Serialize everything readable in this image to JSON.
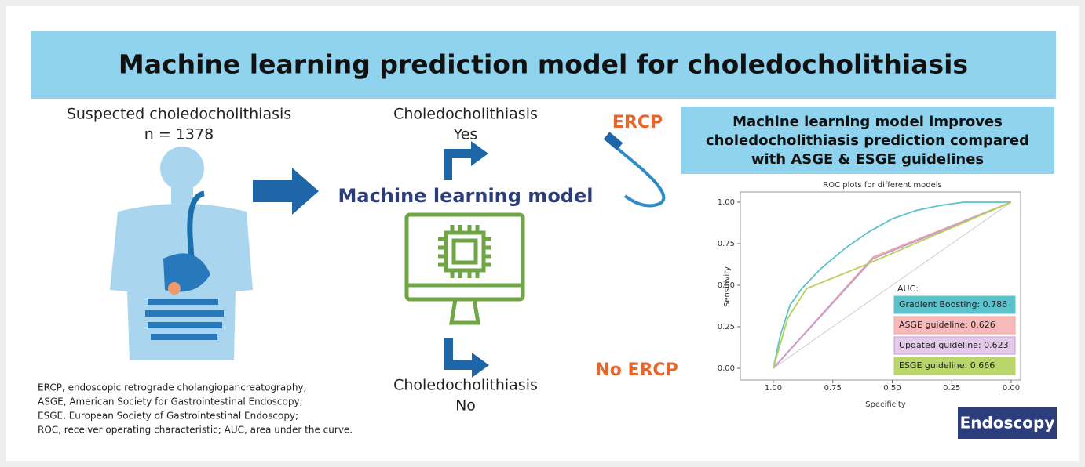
{
  "title": "Machine learning prediction model for choledocholithiasis",
  "left": {
    "heading": "Suspected choledocholithiasis",
    "count": "n = 1378",
    "footnotes": [
      "ERCP, endoscopic retrograde cholangiopancreatography;",
      "ASGE, American Society for Gastrointestinal Endoscopy;",
      "ESGE, European Society of Gastrointestinal Endoscopy;",
      "ROC, receiver operating characteristic; AUC, area under the curve."
    ]
  },
  "middle": {
    "yes_label": "Choledocholithiasis",
    "yes": "Yes",
    "model": "Machine learning model",
    "no_label": "Choledocholithiasis",
    "no": "No"
  },
  "ercp": "ERCP",
  "no_ercp": "No ERCP",
  "right": {
    "heading": [
      "Machine learning model improves",
      "choledocholithiasis prediction compared",
      "with  ASGE & ESGE guidelines"
    ]
  },
  "brand": "Endoscopy",
  "chart_data": {
    "type": "line",
    "title": "ROC plots for different models",
    "x_label": "Specificity",
    "y_label": "Sensitivity",
    "xlim": [
      1,
      0
    ],
    "ylim": [
      0,
      1
    ],
    "xticks": [
      {
        "value": 1,
        "label": "1.00"
      },
      {
        "value": 0.75,
        "label": "0.75"
      },
      {
        "value": 0.5,
        "label": "0.50"
      },
      {
        "value": 0.25,
        "label": "0.25"
      },
      {
        "value": 0,
        "label": "0.00"
      }
    ],
    "yticks": [
      {
        "value": 0,
        "label": "0.00"
      },
      {
        "value": 0.25,
        "label": "0.25"
      },
      {
        "value": 0.5,
        "label": "0.50"
      },
      {
        "value": 0.75,
        "label": "0.75"
      },
      {
        "value": 1,
        "label": "1.00"
      }
    ],
    "legend_title": "AUC:",
    "series": [
      {
        "name": "Gradient Boosting: 0.786",
        "color": "#5bc3cc",
        "fill": "#5bc3cc",
        "x": [
          1,
          0.97,
          0.93,
          0.88,
          0.8,
          0.7,
          0.6,
          0.5,
          0.4,
          0.3,
          0.2,
          0
        ],
        "values": [
          0,
          0.2,
          0.38,
          0.48,
          0.6,
          0.72,
          0.82,
          0.9,
          0.95,
          0.98,
          1,
          1
        ]
      },
      {
        "name": "ASGE guideline: 0.626",
        "color": "#f2a3a3",
        "fill": "#f7b9b9",
        "x": [
          1,
          0.58,
          0
        ],
        "values": [
          0,
          0.67,
          1
        ]
      },
      {
        "name": "Updated guideline: 0.623",
        "color": "#c79ad0",
        "fill": "#e3c9ea",
        "x": [
          1,
          0.58,
          0
        ],
        "values": [
          0,
          0.66,
          1
        ]
      },
      {
        "name": "ESGE guideline: 0.666",
        "color": "#b5d35a",
        "fill": "#b9d66a",
        "x": [
          1,
          0.94,
          0.86,
          0.6,
          0
        ],
        "values": [
          0,
          0.3,
          0.48,
          0.63,
          1
        ]
      }
    ]
  }
}
